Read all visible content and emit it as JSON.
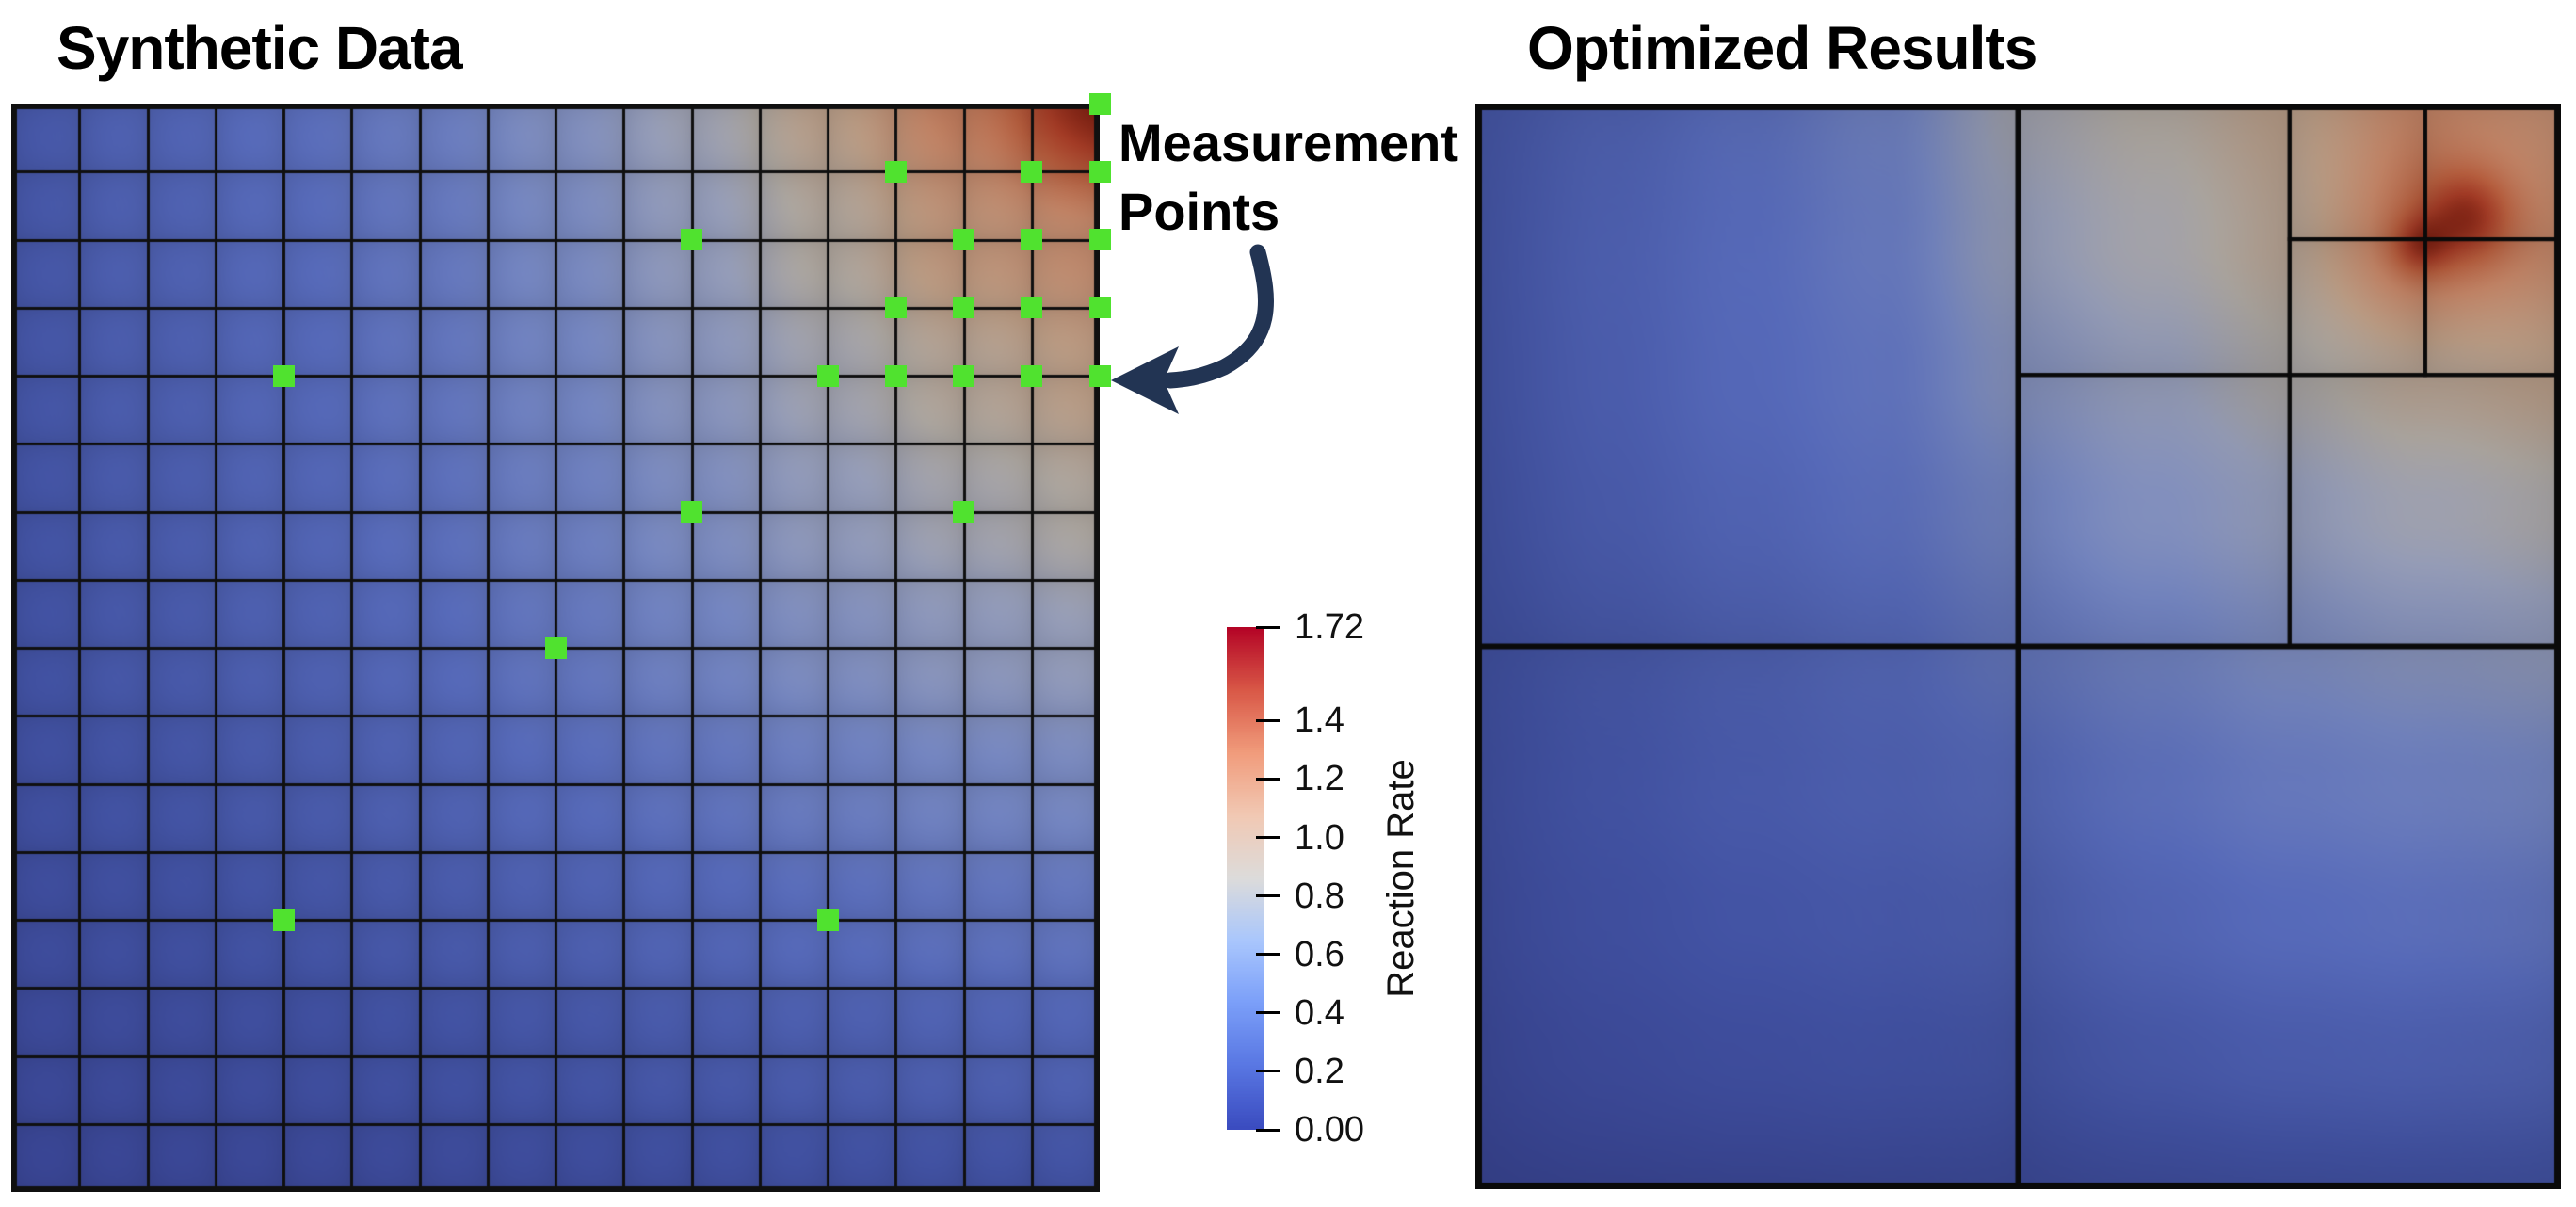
{
  "annotation": {
    "line1": "Measurement",
    "line2": "Points"
  },
  "colorbar": {
    "label": "Reaction Rate",
    "min": 0.0,
    "max": 1.72,
    "ticks": [
      {
        "label": "1.72",
        "value": 1.72
      },
      {
        "label": "1.4",
        "value": 1.4
      },
      {
        "label": "1.2",
        "value": 1.2
      },
      {
        "label": "1.0",
        "value": 1.0
      },
      {
        "label": "0.8",
        "value": 0.8
      },
      {
        "label": "0.6",
        "value": 0.6
      },
      {
        "label": "0.4",
        "value": 0.4
      },
      {
        "label": "0.2",
        "value": 0.2
      },
      {
        "label": "0.00",
        "value": 0.0
      }
    ]
  },
  "colors": {
    "background": "#ffffff",
    "text": "#000000",
    "arrow": "#223453",
    "marker_green": "#50e22f",
    "grid_line": "#101010",
    "mesh_line": "#0a0a0a",
    "panel_colormap": [
      [
        0,
        "#333c88"
      ],
      [
        0.125,
        "#40509f"
      ],
      [
        0.25,
        "#5568b6"
      ],
      [
        0.375,
        "#7283bd"
      ],
      [
        0.5,
        "#939ab4"
      ],
      [
        0.575,
        "#a8a29c"
      ],
      [
        0.65,
        "#b59780"
      ],
      [
        0.75,
        "#bc8063"
      ],
      [
        0.85,
        "#b25c3d"
      ],
      [
        0.93,
        "#a03a25"
      ],
      [
        1,
        "#7c2012"
      ]
    ],
    "colorbar_colormap": [
      [
        0,
        "#3b4cc0"
      ],
      [
        0.125,
        "#5977e3"
      ],
      [
        0.25,
        "#7b9ff9"
      ],
      [
        0.375,
        "#aac7fd"
      ],
      [
        0.5,
        "#dddcdb"
      ],
      [
        0.625,
        "#f2c9b4"
      ],
      [
        0.75,
        "#f19c7c"
      ],
      [
        0.875,
        "#d95847"
      ],
      [
        1,
        "#b40426"
      ]
    ]
  },
  "chart_data": {
    "type": "heatmap",
    "value_label": "Reaction Rate",
    "value_range": [
      0,
      1.72
    ],
    "left_panel": {
      "title": "Synthetic Data",
      "description": "Smooth reaction-rate field rendered on a 16x16 quad grid; peak 1.72 at the top-right corner, minimum ~0.08 at the bottom-left. Green squares mark measurement points at grid nodes.",
      "grid_divisions": 16,
      "field_values_9x9": [
        [
          0.26,
          0.36,
          0.45,
          0.56,
          0.72,
          0.9,
          1.1,
          1.34,
          1.72
        ],
        [
          0.25,
          0.34,
          0.42,
          0.52,
          0.67,
          0.83,
          1.01,
          1.18,
          1.26
        ],
        [
          0.24,
          0.32,
          0.4,
          0.5,
          0.63,
          0.77,
          0.92,
          1.04,
          1.12
        ],
        [
          0.225,
          0.3,
          0.375,
          0.46,
          0.58,
          0.7,
          0.83,
          0.93,
          1.0
        ],
        [
          0.21,
          0.275,
          0.34,
          0.415,
          0.52,
          0.62,
          0.72,
          0.8,
          0.86
        ],
        [
          0.185,
          0.235,
          0.29,
          0.35,
          0.43,
          0.5,
          0.58,
          0.64,
          0.68
        ],
        [
          0.155,
          0.19,
          0.235,
          0.28,
          0.335,
          0.39,
          0.445,
          0.49,
          0.52
        ],
        [
          0.12,
          0.145,
          0.175,
          0.21,
          0.245,
          0.28,
          0.315,
          0.345,
          0.37
        ],
        [
          0.08,
          0.095,
          0.11,
          0.13,
          0.15,
          0.17,
          0.19,
          0.205,
          0.22
        ]
      ],
      "measurement_points_grid16": [
        [
          16,
          0
        ],
        [
          13,
          1
        ],
        [
          15,
          1
        ],
        [
          16,
          1
        ],
        [
          10,
          2
        ],
        [
          14,
          2
        ],
        [
          15,
          2
        ],
        [
          16,
          2
        ],
        [
          13,
          3
        ],
        [
          14,
          3
        ],
        [
          15,
          3
        ],
        [
          16,
          3
        ],
        [
          4,
          4
        ],
        [
          12,
          4
        ],
        [
          13,
          4
        ],
        [
          14,
          4
        ],
        [
          15,
          4
        ],
        [
          16,
          4
        ],
        [
          10,
          6
        ],
        [
          14,
          6
        ],
        [
          8,
          8
        ],
        [
          4,
          12
        ],
        [
          12,
          12
        ]
      ]
    },
    "right_panel": {
      "title": "Optimized Results",
      "description": "Adaptive quadtree mesh (10 cells) of the optimized reaction-rate field; refinement concentrated in the upper-right with a hot spot near normalized (0.9, 0.1).",
      "mesh_cells_norm": [
        [
          0,
          0,
          0.5,
          0.5
        ],
        [
          0,
          0.5,
          0.5,
          0.5
        ],
        [
          0.5,
          0.5,
          0.5,
          0.5
        ],
        [
          0.5,
          0,
          0.25,
          0.25
        ],
        [
          0.5,
          0.25,
          0.25,
          0.25
        ],
        [
          0.75,
          0.25,
          0.25,
          0.25
        ],
        [
          0.75,
          0,
          0.125,
          0.125
        ],
        [
          0.875,
          0,
          0.125,
          0.125
        ],
        [
          0.75,
          0.125,
          0.125,
          0.125
        ],
        [
          0.875,
          0.125,
          0.125,
          0.125
        ]
      ],
      "field_values_9x9": [
        [
          0.26,
          0.36,
          0.46,
          0.6,
          0.92,
          1.0,
          1.1,
          1.3,
          1.24
        ],
        [
          0.25,
          0.34,
          0.43,
          0.55,
          0.85,
          0.94,
          1.06,
          1.42,
          1.28
        ],
        [
          0.24,
          0.32,
          0.41,
          0.5,
          0.75,
          0.85,
          0.97,
          1.06,
          1.1
        ],
        [
          0.225,
          0.3,
          0.375,
          0.46,
          0.63,
          0.73,
          0.84,
          0.91,
          0.96
        ],
        [
          0.21,
          0.275,
          0.34,
          0.41,
          0.53,
          0.61,
          0.7,
          0.77,
          0.82
        ],
        [
          0.185,
          0.235,
          0.29,
          0.34,
          0.42,
          0.48,
          0.55,
          0.6,
          0.64
        ],
        [
          0.155,
          0.19,
          0.235,
          0.27,
          0.33,
          0.38,
          0.43,
          0.47,
          0.5
        ],
        [
          0.12,
          0.145,
          0.175,
          0.205,
          0.24,
          0.275,
          0.31,
          0.335,
          0.36
        ],
        [
          0.08,
          0.095,
          0.11,
          0.13,
          0.15,
          0.17,
          0.19,
          0.205,
          0.22
        ]
      ],
      "hotspots": [
        {
          "u": 0.915,
          "v": 0.102,
          "amp": 0.3,
          "sigma2": 0.0016
        },
        {
          "u": 0.872,
          "v": 0.13,
          "amp": 0.22,
          "sigma2": 0.0007
        }
      ]
    }
  }
}
